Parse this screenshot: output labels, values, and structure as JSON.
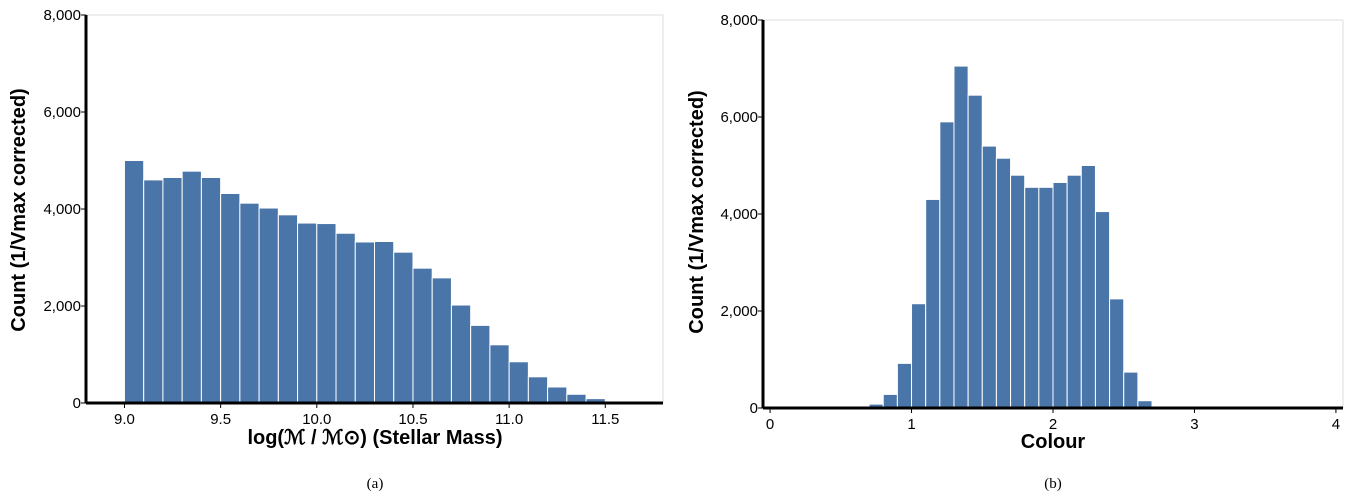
{
  "chart_data": [
    {
      "type": "bar",
      "panel_caption": "(a)",
      "xlabel": "log(ℳ / ℳ⊙) (Stellar Mass)",
      "ylabel": "Count (1/Vmax corrected)",
      "xlim": [
        8.8,
        11.8
      ],
      "ylim": [
        0,
        8000
      ],
      "xticks": [
        9.0,
        9.5,
        10.0,
        10.5,
        11.0,
        11.5
      ],
      "xtick_labels": [
        "9.0",
        "9.5",
        "10.0",
        "10.5",
        "11.0",
        "11.5"
      ],
      "yticks": [
        0,
        2000,
        4000,
        6000,
        8000
      ],
      "ytick_labels": [
        "0",
        "2,000",
        "4,000",
        "6,000",
        "8,000"
      ],
      "bin_width": 0.1,
      "x": [
        9.0,
        9.1,
        9.2,
        9.3,
        9.4,
        9.5,
        9.6,
        9.7,
        9.8,
        9.9,
        10.0,
        10.1,
        10.2,
        10.3,
        10.4,
        10.5,
        10.6,
        10.7,
        10.8,
        10.9,
        11.0,
        11.1,
        11.2,
        11.3,
        11.4,
        11.5
      ],
      "values": [
        5000,
        4600,
        4650,
        4780,
        4650,
        4320,
        4120,
        4020,
        3880,
        3710,
        3700,
        3500,
        3320,
        3330,
        3110,
        2780,
        2580,
        2020,
        1600,
        1200,
        850,
        540,
        330,
        180,
        90,
        40
      ],
      "bar_color": "#4a75a8",
      "grid": false
    },
    {
      "type": "bar",
      "panel_caption": "(b)",
      "xlabel": "Colour",
      "ylabel": "Count (1/Vmax corrected)",
      "xlim": [
        -0.05,
        4.05
      ],
      "ylim": [
        0,
        8000
      ],
      "xticks": [
        0,
        1,
        2,
        3,
        4
      ],
      "xtick_labels": [
        "0",
        "1",
        "2",
        "3",
        "4"
      ],
      "yticks": [
        0,
        2000,
        4000,
        6000,
        8000
      ],
      "ytick_labels": [
        "0",
        "2,000",
        "4,000",
        "6,000",
        "8,000"
      ],
      "bin_width": 0.1,
      "x": [
        0.0,
        0.1,
        0.2,
        0.3,
        0.4,
        0.5,
        0.6,
        0.7,
        0.8,
        0.9,
        1.0,
        1.1,
        1.2,
        1.3,
        1.4,
        1.5,
        1.6,
        1.7,
        1.8,
        1.9,
        2.0,
        2.1,
        2.2,
        2.3,
        2.4,
        2.5,
        2.6,
        2.7,
        2.8,
        2.9,
        3.0,
        3.1
      ],
      "values": [
        20,
        10,
        10,
        10,
        10,
        20,
        30,
        80,
        280,
        920,
        2150,
        4300,
        5900,
        7050,
        6450,
        5400,
        5150,
        4800,
        4550,
        4550,
        4650,
        4800,
        5000,
        4050,
        2250,
        740,
        150,
        40,
        20,
        20,
        10,
        10
      ],
      "bar_color": "#4a75a8",
      "grid": false
    }
  ]
}
